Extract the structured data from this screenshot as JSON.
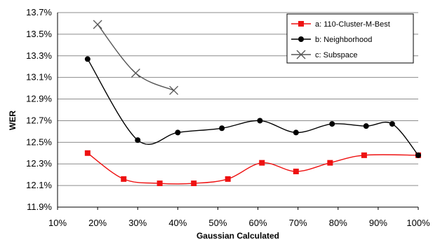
{
  "chart_data": {
    "type": "line",
    "xlabel": "Gaussian Calculated",
    "ylabel": "WER",
    "xlim": [
      10,
      100
    ],
    "ylim": [
      11.9,
      13.7
    ],
    "x_ticks": [
      "10%",
      "20%",
      "30%",
      "40%",
      "50%",
      "60%",
      "70%",
      "80%",
      "90%",
      "100%"
    ],
    "y_ticks": [
      "11.9%",
      "12.1%",
      "12.3%",
      "12.5%",
      "12.7%",
      "12.9%",
      "13.1%",
      "13.3%",
      "13.5%",
      "13.7%"
    ],
    "grid": "horizontal",
    "legend_position": "top-right",
    "smoothed": true,
    "series": [
      {
        "name": "a: 110-Cluster-M-Best",
        "color": "#ee1111",
        "marker": "square",
        "x": [
          17.5,
          26.5,
          35.5,
          44,
          52.5,
          61,
          69.5,
          78,
          86.5,
          100
        ],
        "y": [
          12.4,
          12.16,
          12.12,
          12.12,
          12.16,
          12.31,
          12.23,
          12.31,
          12.38,
          12.38
        ]
      },
      {
        "name": "b: Neighborhood",
        "color": "#000000",
        "marker": "circle",
        "x": [
          17.5,
          30,
          40,
          51,
          60.5,
          69.5,
          78.5,
          87,
          93.5,
          100
        ],
        "y": [
          13.27,
          12.52,
          12.59,
          12.63,
          12.7,
          12.59,
          12.67,
          12.65,
          12.67,
          12.38
        ]
      },
      {
        "name": "c: Subspace",
        "color": "#555555",
        "marker": "x",
        "x": [
          20,
          29.5,
          39
        ],
        "y": [
          13.59,
          13.14,
          12.98
        ]
      }
    ]
  }
}
